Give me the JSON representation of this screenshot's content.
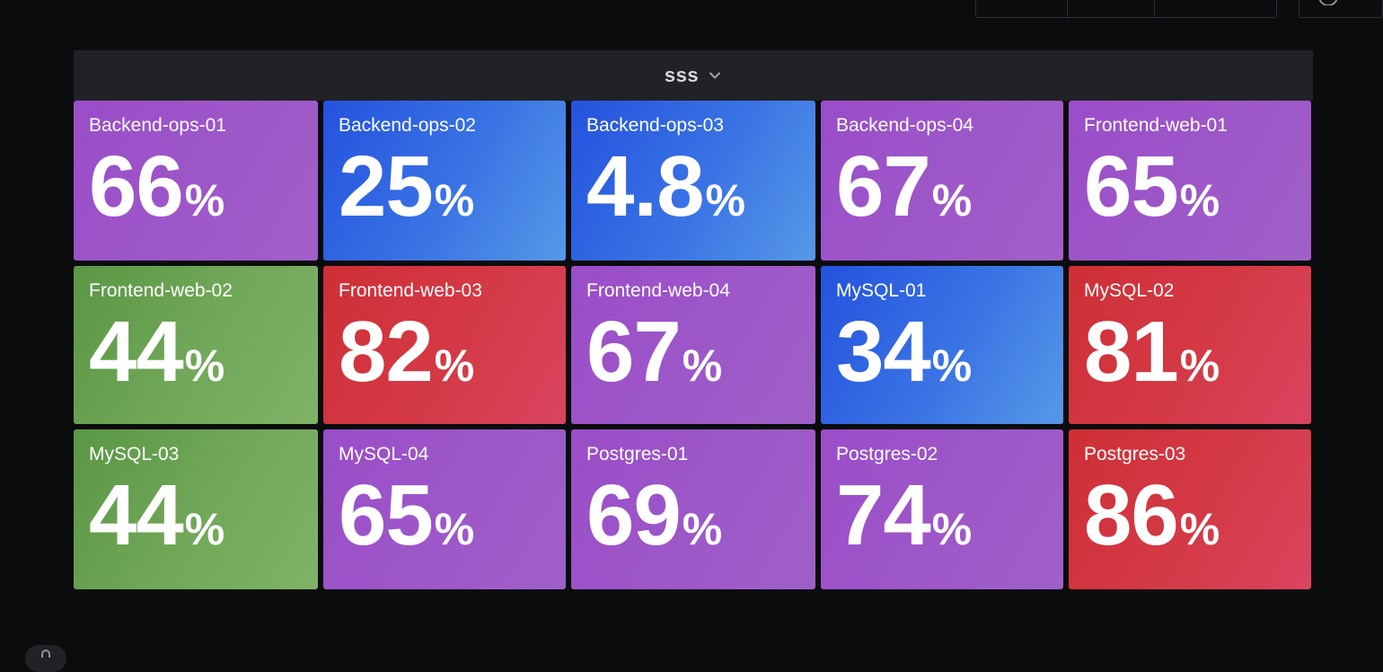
{
  "panel": {
    "title": "sss"
  },
  "colors": {
    "purple": "#9a4dc8",
    "blue": "#2452de",
    "green": "#5a9744",
    "red": "#ce2f36",
    "background": "#0b0c0e",
    "header": "#202226"
  },
  "tiles": [
    {
      "label": "Backend-ops-01",
      "value": "66",
      "unit": "%",
      "color": "purple"
    },
    {
      "label": "Backend-ops-02",
      "value": "25",
      "unit": "%",
      "color": "blue"
    },
    {
      "label": "Backend-ops-03",
      "value": "4.8",
      "unit": "%",
      "color": "blue"
    },
    {
      "label": "Backend-ops-04",
      "value": "67",
      "unit": "%",
      "color": "purple"
    },
    {
      "label": "Frontend-web-01",
      "value": "65",
      "unit": "%",
      "color": "purple"
    },
    {
      "label": "Frontend-web-02",
      "value": "44",
      "unit": "%",
      "color": "green"
    },
    {
      "label": "Frontend-web-03",
      "value": "82",
      "unit": "%",
      "color": "red"
    },
    {
      "label": "Frontend-web-04",
      "value": "67",
      "unit": "%",
      "color": "purple"
    },
    {
      "label": "MySQL-01",
      "value": "34",
      "unit": "%",
      "color": "blue"
    },
    {
      "label": "MySQL-02",
      "value": "81",
      "unit": "%",
      "color": "red"
    },
    {
      "label": "MySQL-03",
      "value": "44",
      "unit": "%",
      "color": "green"
    },
    {
      "label": "MySQL-04",
      "value": "65",
      "unit": "%",
      "color": "purple"
    },
    {
      "label": "Postgres-01",
      "value": "69",
      "unit": "%",
      "color": "purple"
    },
    {
      "label": "Postgres-02",
      "value": "74",
      "unit": "%",
      "color": "purple"
    },
    {
      "label": "Postgres-03",
      "value": "86",
      "unit": "%",
      "color": "red"
    }
  ]
}
